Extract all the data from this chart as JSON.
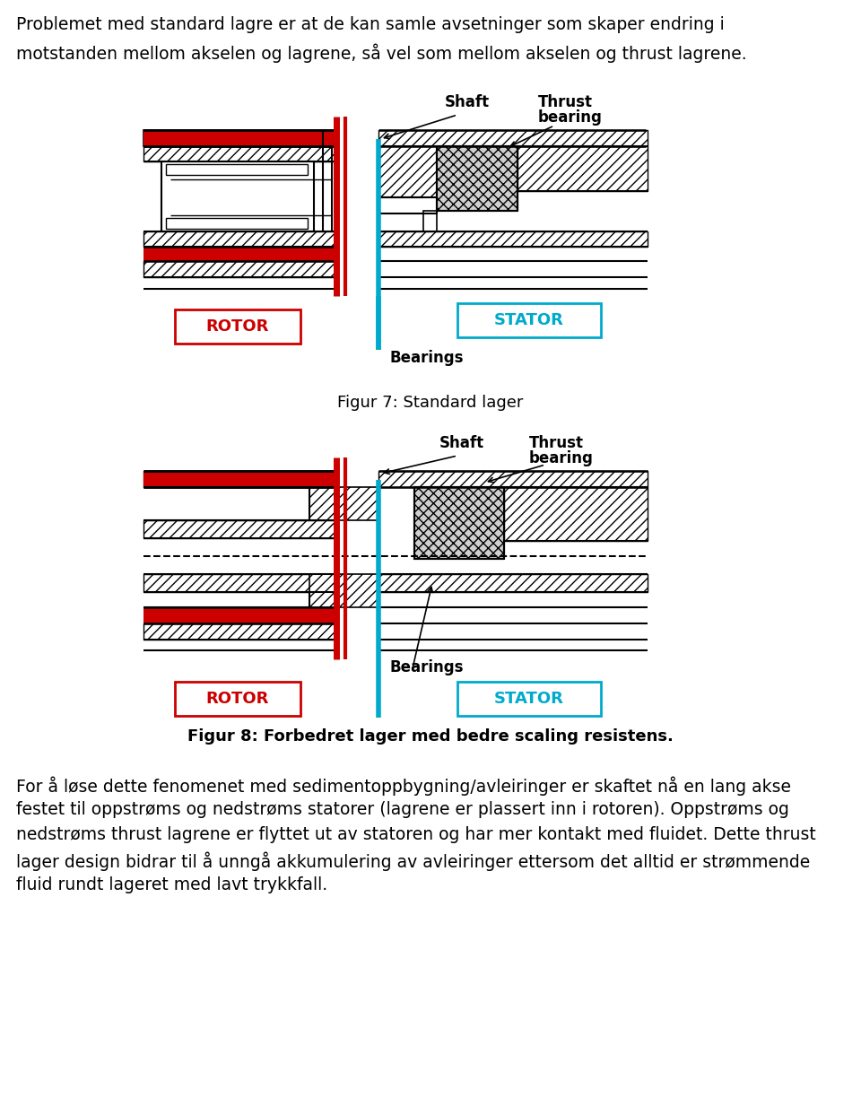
{
  "title_text_line1": "Problemet med standard lagre er at de kan samle avsetninger som skaper endring i",
  "title_text_line2": "motstanden mellom akselen og lagrene, så vel som mellom akselen og thrust lagrene.",
  "fig7_caption": "Figur 7: Standard lager",
  "fig8_caption": "Figur 8: Forbedret lager med bedre scaling resistens.",
  "body_text_lines": [
    "For å løse dette fenomenet med sedimentoppbygning/avleiringer er skaftet nå en lang akse",
    "festet til oppstrøms og nedstrøms statorer (lagrene er plassert inn i rotoren). Oppstrøms og",
    "nedstrøms thrust lagrene er flyttet ut av statoren og har mer kontakt med fluidet. Dette thrust",
    "lager design bidrar til å unngå akkumulering av avleiringer ettersom det alltid er strømmende",
    "fluid rundt lageret med lavt trykkfall."
  ],
  "rotor_color": "#cc0000",
  "stator_color": "#00aacc",
  "blue_line_color": "#00aacc",
  "red_line_color": "#cc0000",
  "bg_color": "#ffffff",
  "text_color": "#000000",
  "font_size_title": 13.5,
  "font_size_caption": 13,
  "font_size_body": 13.5,
  "rotor_label": "ROTOR",
  "stator_label": "STATOR",
  "shaft_label": "Shaft",
  "thrust_label_line1": "Thrust",
  "thrust_label_line2": "bearing",
  "bearings_label": "Bearings"
}
